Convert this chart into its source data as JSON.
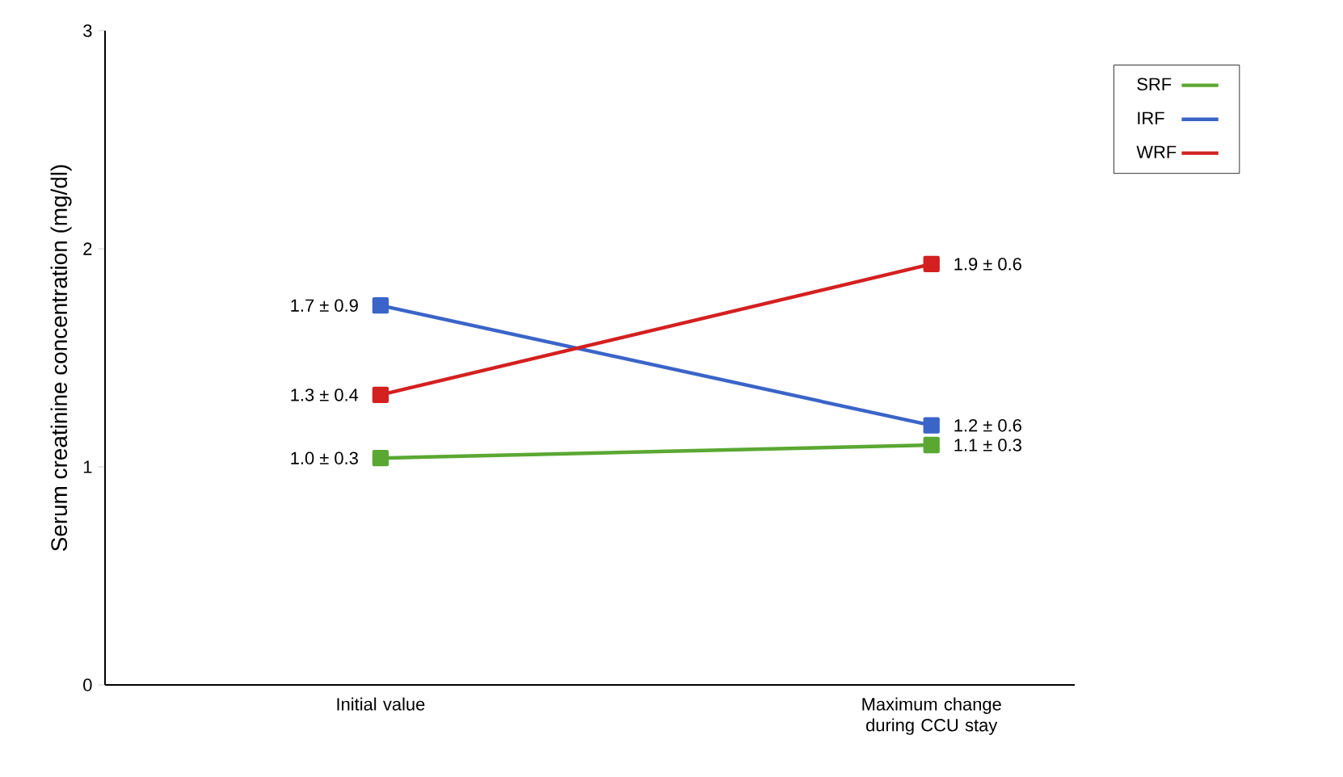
{
  "chart_data": {
    "type": "line",
    "ylabel": "Serum creatinine concentration (mg/dl)",
    "categories": [
      "Initial value",
      "Maximum change during CCU stay"
    ],
    "series": [
      {
        "name": "SRF",
        "color": "#5aa832",
        "values": [
          1.04,
          1.1
        ],
        "value_labels": [
          "1.0 ± 0.3",
          "1.1 ± 0.3"
        ]
      },
      {
        "name": "IRF",
        "color": "#3a64c8",
        "values": [
          1.74,
          1.19
        ],
        "value_labels": [
          "1.7 ± 0.9",
          "1.2 ± 0.6"
        ]
      },
      {
        "name": "WRF",
        "color": "#d42020",
        "values": [
          1.33,
          1.93
        ],
        "value_labels": [
          "1.3 ± 0.4",
          "1.9 ± 0.6"
        ]
      }
    ],
    "ylim": [
      0,
      3
    ],
    "yticks": [
      0,
      1,
      2,
      3
    ],
    "grid": false,
    "legend": "top right",
    "marker": "square",
    "line_style": "solid"
  }
}
